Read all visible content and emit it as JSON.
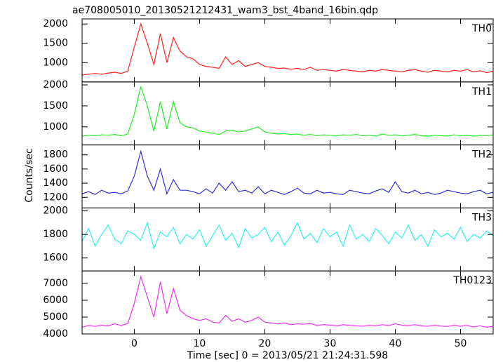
{
  "title": "ae708005010_20130521212431_wam3_bst_4band_16bin.qdp",
  "xlabel": "Time [sec] 0 = 2013/05/21 21:24:31.598",
  "ylabel": "Counts/sec",
  "chart_data": [
    {
      "type": "line",
      "label": "TH0",
      "color": "#ff2020",
      "x": [
        -8,
        -7,
        -6,
        -5,
        -4,
        -3,
        -2,
        -1,
        0,
        1,
        2,
        3,
        4,
        5,
        6,
        7,
        8,
        9,
        10,
        11,
        12,
        13,
        14,
        15,
        16,
        17,
        18,
        19,
        20,
        21,
        22,
        23,
        24,
        25,
        26,
        27,
        28,
        29,
        30,
        31,
        32,
        33,
        34,
        35,
        36,
        37,
        38,
        39,
        40,
        41,
        42,
        43,
        44,
        45,
        46,
        47,
        48,
        49,
        50,
        51,
        52,
        53,
        54,
        55
      ],
      "values": [
        680,
        700,
        720,
        700,
        730,
        750,
        720,
        780,
        1400,
        2000,
        1500,
        950,
        1750,
        1000,
        1650,
        1300,
        1150,
        1100,
        950,
        900,
        880,
        850,
        1150,
        950,
        1050,
        900,
        950,
        1000,
        900,
        880,
        850,
        860,
        830,
        850,
        820,
        880,
        800,
        820,
        800,
        780,
        820,
        800,
        780,
        760,
        800,
        780,
        820,
        800,
        780,
        760,
        800,
        820,
        780,
        750,
        800,
        780,
        760,
        800,
        780,
        820,
        760,
        790,
        740,
        780
      ],
      "xlim": [
        -8,
        55
      ],
      "xticks": [
        0,
        10,
        20,
        30,
        40,
        50
      ],
      "ylim": [
        500,
        2130
      ],
      "yticks": [
        1000,
        1500,
        2000
      ]
    },
    {
      "type": "line",
      "label": "TH1",
      "color": "#22ee22",
      "x": [
        -8,
        -7,
        -6,
        -5,
        -4,
        -3,
        -2,
        -1,
        0,
        1,
        2,
        3,
        4,
        5,
        6,
        7,
        8,
        9,
        10,
        11,
        12,
        13,
        14,
        15,
        16,
        17,
        18,
        19,
        20,
        21,
        22,
        23,
        24,
        25,
        26,
        27,
        28,
        29,
        30,
        31,
        32,
        33,
        34,
        35,
        36,
        37,
        38,
        39,
        40,
        41,
        42,
        43,
        44,
        45,
        46,
        47,
        48,
        49,
        50,
        51,
        52,
        53,
        54,
        55
      ],
      "values": [
        780,
        800,
        790,
        810,
        800,
        820,
        790,
        830,
        1300,
        1950,
        1500,
        900,
        1600,
        950,
        1600,
        1100,
        1000,
        980,
        900,
        880,
        850,
        820,
        900,
        920,
        880,
        900,
        950,
        1000,
        880,
        850,
        830,
        840,
        820,
        830,
        800,
        820,
        790,
        810,
        800,
        790,
        810,
        800,
        820,
        790,
        800,
        780,
        830,
        800,
        810,
        790,
        800,
        820,
        790,
        780,
        800,
        790,
        780,
        810,
        790,
        800,
        780,
        800,
        790,
        810
      ],
      "xlim": [
        -8,
        55
      ],
      "xticks": [
        0,
        10,
        20,
        30,
        40,
        50
      ],
      "ylim": [
        570,
        2070
      ],
      "yticks": [
        1000,
        1500,
        2000
      ]
    },
    {
      "type": "line",
      "label": "TH2",
      "color": "#3030dd",
      "x": [
        -8,
        -7,
        -6,
        -5,
        -4,
        -3,
        -2,
        -1,
        0,
        1,
        2,
        3,
        4,
        5,
        6,
        7,
        8,
        9,
        10,
        11,
        12,
        13,
        14,
        15,
        16,
        17,
        18,
        19,
        20,
        21,
        22,
        23,
        24,
        25,
        26,
        27,
        28,
        29,
        30,
        31,
        32,
        33,
        34,
        35,
        36,
        37,
        38,
        39,
        40,
        41,
        42,
        43,
        44,
        45,
        46,
        47,
        48,
        49,
        50,
        51,
        52,
        53,
        54,
        55
      ],
      "values": [
        1250,
        1280,
        1240,
        1300,
        1260,
        1270,
        1250,
        1290,
        1500,
        1850,
        1500,
        1300,
        1600,
        1250,
        1450,
        1300,
        1300,
        1280,
        1250,
        1320,
        1260,
        1400,
        1300,
        1420,
        1280,
        1300,
        1260,
        1350,
        1250,
        1300,
        1270,
        1240,
        1280,
        1330,
        1260,
        1250,
        1300,
        1260,
        1270,
        1250,
        1240,
        1300,
        1280,
        1260,
        1250,
        1290,
        1320,
        1270,
        1420,
        1280,
        1260,
        1300,
        1250,
        1270,
        1240,
        1260,
        1300,
        1280,
        1260,
        1250,
        1280,
        1300,
        1250,
        1270
      ],
      "xlim": [
        -8,
        55
      ],
      "xticks": [
        0,
        10,
        20,
        30,
        40,
        50
      ],
      "ylim": [
        1050,
        1940
      ],
      "yticks": [
        1200,
        1400,
        1600,
        1800
      ]
    },
    {
      "type": "line",
      "label": "TH3",
      "color": "#30f0f0",
      "x": [
        -8,
        -7,
        -6,
        -5,
        -4,
        -3,
        -2,
        -1,
        0,
        1,
        2,
        3,
        4,
        5,
        6,
        7,
        8,
        9,
        10,
        11,
        12,
        13,
        14,
        15,
        16,
        17,
        18,
        19,
        20,
        21,
        22,
        23,
        24,
        25,
        26,
        27,
        28,
        29,
        30,
        31,
        32,
        33,
        34,
        35,
        36,
        37,
        38,
        39,
        40,
        41,
        42,
        43,
        44,
        45,
        46,
        47,
        48,
        49,
        50,
        51,
        52,
        53,
        54,
        55
      ],
      "values": [
        1740,
        1850,
        1700,
        1800,
        1880,
        1760,
        1720,
        1830,
        1800,
        1750,
        1900,
        1680,
        1820,
        1780,
        1860,
        1720,
        1800,
        1760,
        1840,
        1700,
        1790,
        1880,
        1750,
        1810,
        1690,
        1850,
        1770,
        1800,
        1860,
        1740,
        1820,
        1710,
        1790,
        1900,
        1760,
        1810,
        1730,
        1850,
        1780,
        1820,
        1700,
        1880,
        1760,
        1800,
        1740,
        1850,
        1790,
        1720,
        1820,
        1770,
        1880,
        1750,
        1800,
        1700,
        1840,
        1780,
        1810,
        1760,
        1860,
        1740,
        1800,
        1770,
        1830,
        1790
      ],
      "xlim": [
        -8,
        55
      ],
      "xticks": [
        0,
        10,
        20,
        30,
        40,
        50
      ],
      "ylim": [
        1490,
        2025
      ],
      "yticks": [
        1600,
        1800,
        2000
      ]
    },
    {
      "type": "line",
      "label": "TH0123",
      "color": "#f030f0",
      "x": [
        -8,
        -7,
        -6,
        -5,
        -4,
        -3,
        -2,
        -1,
        0,
        1,
        2,
        3,
        4,
        5,
        6,
        7,
        8,
        9,
        10,
        11,
        12,
        13,
        14,
        15,
        16,
        17,
        18,
        19,
        20,
        21,
        22,
        23,
        24,
        25,
        26,
        27,
        28,
        29,
        30,
        31,
        32,
        33,
        34,
        35,
        36,
        37,
        38,
        39,
        40,
        41,
        42,
        43,
        44,
        45,
        46,
        47,
        48,
        49,
        50,
        51,
        52,
        53,
        54,
        55
      ],
      "values": [
        4400,
        4500,
        4450,
        4520,
        4480,
        4600,
        4500,
        4620,
        5800,
        7400,
        6200,
        5000,
        7100,
        5200,
        6700,
        5400,
        5100,
        4900,
        4800,
        4900,
        4700,
        4650,
        5100,
        4750,
        4900,
        4700,
        4800,
        5000,
        4700,
        4650,
        4600,
        4650,
        4550,
        4600,
        4580,
        4620,
        4500,
        4550,
        4520,
        4480,
        4550,
        4500,
        4480,
        4460,
        4500,
        4480,
        4550,
        4500,
        4600,
        4520,
        4500,
        4550,
        4480,
        4460,
        4500,
        4470,
        4450,
        4500,
        4460,
        4500,
        4420,
        4480,
        4400,
        4450
      ],
      "xlim": [
        -8,
        55
      ],
      "xticks": [
        0,
        10,
        20,
        30,
        40,
        50
      ],
      "ylim": [
        4000,
        7740
      ],
      "yticks": [
        4000,
        5000,
        6000,
        7000
      ]
    }
  ]
}
